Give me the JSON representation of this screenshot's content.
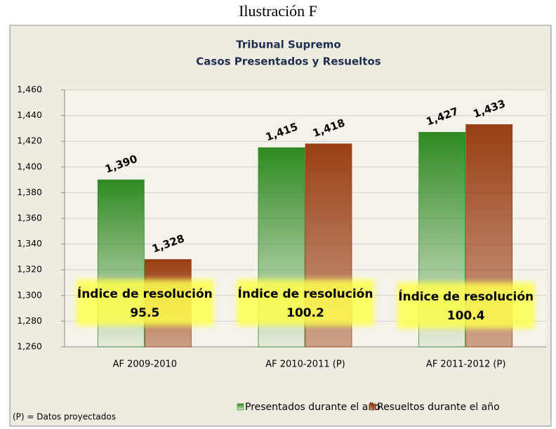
{
  "figure_label": "Ilustración F",
  "chart_data": {
    "type": "bar",
    "title": [
      "Tribunal Supremo",
      "Casos Presentados y Resueltos"
    ],
    "categories": [
      "AF 2009-2010",
      "AF 2010-2011 (P)",
      "AF 2011-2012 (P)"
    ],
    "series": [
      {
        "name": "Presentados durante el año",
        "color": "#2f8a22",
        "values": [
          1390,
          1415,
          1427
        ],
        "value_labels": [
          "1,390",
          "1,415",
          "1,427"
        ]
      },
      {
        "name": "Resueltos durante el año",
        "color": "#9a3f14",
        "values": [
          1328,
          1418,
          1433
        ],
        "value_labels": [
          "1,328",
          "1,418",
          "1,433"
        ]
      }
    ],
    "ylim": [
      1260,
      1460
    ],
    "yticks": [
      {
        "value": 1260,
        "label": "1,260"
      },
      {
        "value": 1280,
        "label": "1,280"
      },
      {
        "value": 1300,
        "label": "1,300"
      },
      {
        "value": 1320,
        "label": "1,320"
      },
      {
        "value": 1340,
        "label": "1,340"
      },
      {
        "value": 1360,
        "label": "1,360"
      },
      {
        "value": 1380,
        "label": "1,380"
      },
      {
        "value": 1400,
        "label": "1,400"
      },
      {
        "value": 1420,
        "label": "1,420"
      },
      {
        "value": 1440,
        "label": "1,440"
      },
      {
        "value": 1460,
        "label": "1,460"
      }
    ],
    "grid": true,
    "legend": "bottom",
    "annotations": [
      {
        "title": "Índice de resolución",
        "value": 95.5
      },
      {
        "title": "Índice de resolución",
        "value": 100.2
      },
      {
        "title": "Índice de resolución",
        "value": 100.4
      }
    ],
    "footnote": "(P) = Datos proyectados"
  }
}
